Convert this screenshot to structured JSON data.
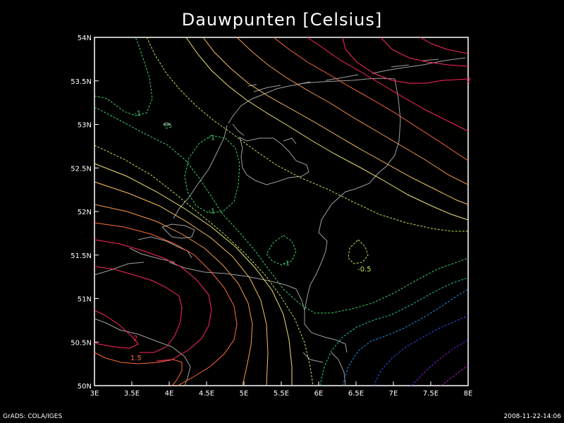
{
  "title": "Dauwpunten [Celsius]",
  "footer": {
    "left": "GrADS: COLA/IGES",
    "right": "2008-11-22-14:06"
  },
  "map": {
    "lon_range": [
      3,
      8
    ],
    "lat_range": [
      50,
      54
    ],
    "lon_ticks": [
      {
        "value": 3,
        "label": "3E"
      },
      {
        "value": 3.5,
        "label": "3.5E"
      },
      {
        "value": 4,
        "label": "4E"
      },
      {
        "value": 4.5,
        "label": "4.5E"
      },
      {
        "value": 5,
        "label": "5E"
      },
      {
        "value": 5.5,
        "label": "5.5E"
      },
      {
        "value": 6,
        "label": "6E"
      },
      {
        "value": 6.5,
        "label": "6.5E"
      },
      {
        "value": 7,
        "label": "7E"
      },
      {
        "value": 7.5,
        "label": "7.5E"
      },
      {
        "value": 8,
        "label": "8E"
      }
    ],
    "lat_ticks": [
      {
        "value": 50,
        "label": "50N"
      },
      {
        "value": 50.5,
        "label": "50.5N"
      },
      {
        "value": 51,
        "label": "51N"
      },
      {
        "value": 51.5,
        "label": "51.5N"
      },
      {
        "value": 52,
        "label": "52N"
      },
      {
        "value": 52.5,
        "label": "52.5N"
      },
      {
        "value": 53,
        "label": "53N"
      },
      {
        "value": 53.5,
        "label": "53.5N"
      },
      {
        "value": 54,
        "label": "54N"
      }
    ],
    "contour_labels": [
      {
        "text": "-1",
        "lon": 3.53,
        "lat": 53.1,
        "color": "#3ecf6a"
      },
      {
        "text": "-1",
        "lon": 4.52,
        "lat": 52.82,
        "color": "#3ecf6a"
      },
      {
        "text": "-1",
        "lon": 4.52,
        "lat": 51.98,
        "color": "#3ecf6a"
      },
      {
        "text": "-1",
        "lon": 5.52,
        "lat": 51.38,
        "color": "#3ecf6a"
      },
      {
        "text": "-0.5",
        "lon": 6.52,
        "lat": 51.31,
        "color": "#b6e65a"
      },
      {
        "text": "2",
        "lon": 3.52,
        "lat": 50.52,
        "color": "#ff2a5a"
      },
      {
        "text": "1.5",
        "lon": 3.48,
        "lat": 50.29,
        "color": "#ff6a3a"
      },
      {
        "text": "2",
        "lon": 7.98,
        "lat": 53.48,
        "color": "#ff2a5a"
      }
    ],
    "contour_colors": {
      "neg1": "#3ecf6a",
      "neg05": "#b6e65a",
      "zero": "#f0e070",
      "pos05": "#f7c060",
      "pos1": "#f79a4a",
      "pos15": "#ff6a3a",
      "pos2": "#ff2a5a",
      "cold1": "#20c0b0",
      "cold2": "#2090e0",
      "cold3": "#3050f0",
      "cold4": "#8020e0",
      "cold5": "#c020c0"
    },
    "coast_color": "#a0a0a0"
  }
}
